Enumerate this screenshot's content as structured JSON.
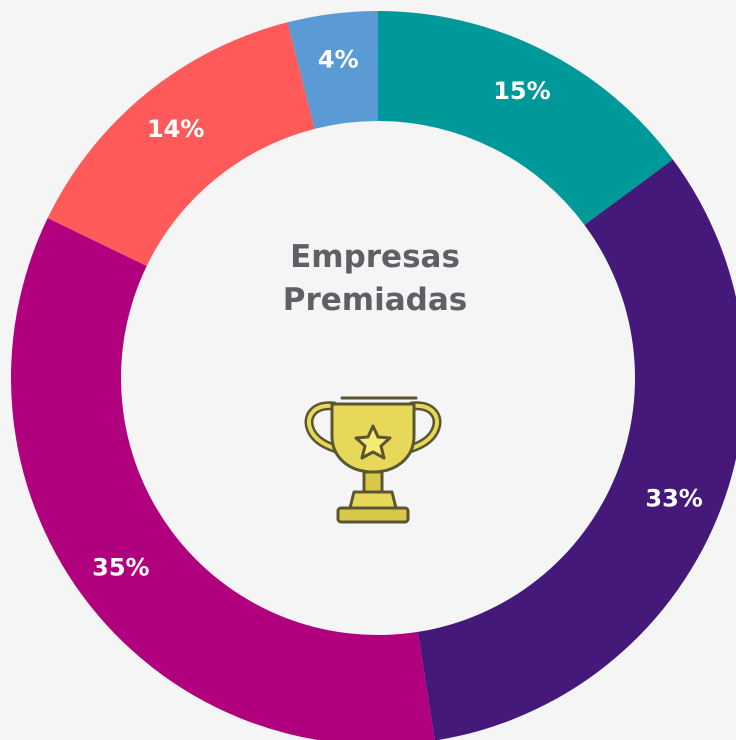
{
  "chart_data": {
    "type": "donut",
    "title": "Empresas Premiadas",
    "values": [
      15,
      33,
      35,
      14,
      4
    ],
    "value_labels": [
      "15%",
      "33%",
      "35%",
      "14%",
      "4%"
    ],
    "colors": [
      "#009999",
      "#44197a",
      "#b0007e",
      "#ff5a5a",
      "#5b9bd5"
    ]
  }
}
